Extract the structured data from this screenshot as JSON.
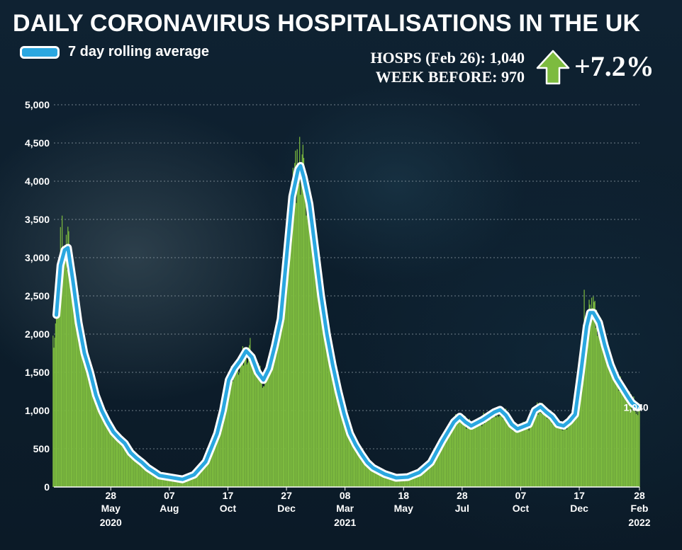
{
  "title": "DAILY CORONAVIRUS HOSPITALISATIONS IN THE UK",
  "legend": {
    "label": "7 day rolling average"
  },
  "stats": {
    "current_label": "HOSPS (Feb 26): 1,040",
    "previous_label": "WEEK BEFORE: 970",
    "change_label": "+7.2%",
    "arrow_icon": "up-arrow-icon"
  },
  "colors": {
    "bars": "#7dbb3f",
    "line": "#2aa7e0",
    "line_outline": "#ffffff",
    "arrow": "#7dbb3f",
    "end_label": "#7dbb3f"
  },
  "chart_data": {
    "type": "bar",
    "title": "DAILY CORONAVIRUS HOSPITALISATIONS IN THE UK",
    "ylim": [
      0,
      5000
    ],
    "y_ticks": [
      "0",
      "500",
      "1,000",
      "1,500",
      "2,000",
      "2,500",
      "3,000",
      "3,500",
      "4,000",
      "4,500",
      "5,000"
    ],
    "grid": "horizontal",
    "legend_position": "top-left",
    "x_ticks": [
      {
        "date": "2020-05-28",
        "day": "28",
        "month": "May",
        "year": "2020"
      },
      {
        "date": "2020-08-07",
        "day": "07",
        "month": "Aug",
        "year": ""
      },
      {
        "date": "2020-10-17",
        "day": "17",
        "month": "Oct",
        "year": ""
      },
      {
        "date": "2020-12-27",
        "day": "27",
        "month": "Dec",
        "year": ""
      },
      {
        "date": "2021-03-08",
        "day": "08",
        "month": "Mar",
        "year": "2021"
      },
      {
        "date": "2021-05-18",
        "day": "18",
        "month": "May",
        "year": ""
      },
      {
        "date": "2021-07-28",
        "day": "28",
        "month": "Jul",
        "year": ""
      },
      {
        "date": "2021-10-07",
        "day": "07",
        "month": "Oct",
        "year": ""
      },
      {
        "date": "2021-12-17",
        "day": "17",
        "month": "Dec",
        "year": ""
      },
      {
        "date": "2022-02-28",
        "day": "28",
        "month": "Feb",
        "year": "2022"
      }
    ],
    "end_label": "1,040",
    "series": [
      {
        "name": "7 day rolling average",
        "style": "line",
        "points": [
          [
            "2020-03-23",
            2250
          ],
          [
            "2020-03-28",
            2900
          ],
          [
            "2020-04-02",
            3100
          ],
          [
            "2020-04-06",
            3130
          ],
          [
            "2020-04-12",
            2700
          ],
          [
            "2020-04-19",
            2150
          ],
          [
            "2020-04-26",
            1750
          ],
          [
            "2020-05-03",
            1500
          ],
          [
            "2020-05-10",
            1200
          ],
          [
            "2020-05-17",
            1000
          ],
          [
            "2020-05-24",
            850
          ],
          [
            "2020-05-31",
            720
          ],
          [
            "2020-06-07",
            640
          ],
          [
            "2020-06-14",
            570
          ],
          [
            "2020-06-21",
            450
          ],
          [
            "2020-06-28",
            380
          ],
          [
            "2020-07-05",
            320
          ],
          [
            "2020-07-12",
            250
          ],
          [
            "2020-07-19",
            200
          ],
          [
            "2020-07-26",
            150
          ],
          [
            "2020-08-09",
            125
          ],
          [
            "2020-08-23",
            100
          ],
          [
            "2020-09-06",
            160
          ],
          [
            "2020-09-20",
            330
          ],
          [
            "2020-10-04",
            700
          ],
          [
            "2020-10-11",
            1000
          ],
          [
            "2020-10-18",
            1400
          ],
          [
            "2020-10-25",
            1550
          ],
          [
            "2020-11-01",
            1650
          ],
          [
            "2020-11-08",
            1780
          ],
          [
            "2020-11-15",
            1700
          ],
          [
            "2020-11-22",
            1500
          ],
          [
            "2020-11-29",
            1400
          ],
          [
            "2020-12-06",
            1550
          ],
          [
            "2020-12-13",
            1850
          ],
          [
            "2020-12-20",
            2200
          ],
          [
            "2020-12-27",
            3000
          ],
          [
            "2021-01-03",
            3800
          ],
          [
            "2021-01-10",
            4150
          ],
          [
            "2021-01-13",
            4200
          ],
          [
            "2021-01-17",
            4050
          ],
          [
            "2021-01-24",
            3700
          ],
          [
            "2021-01-31",
            3100
          ],
          [
            "2021-02-07",
            2500
          ],
          [
            "2021-02-14",
            2000
          ],
          [
            "2021-02-21",
            1600
          ],
          [
            "2021-02-28",
            1250
          ],
          [
            "2021-03-07",
            950
          ],
          [
            "2021-03-14",
            700
          ],
          [
            "2021-03-21",
            550
          ],
          [
            "2021-03-28",
            430
          ],
          [
            "2021-04-04",
            320
          ],
          [
            "2021-04-11",
            250
          ],
          [
            "2021-04-25",
            170
          ],
          [
            "2021-05-09",
            120
          ],
          [
            "2021-05-23",
            130
          ],
          [
            "2021-06-06",
            190
          ],
          [
            "2021-06-20",
            320
          ],
          [
            "2021-07-04",
            600
          ],
          [
            "2021-07-18",
            850
          ],
          [
            "2021-07-25",
            920
          ],
          [
            "2021-08-01",
            850
          ],
          [
            "2021-08-08",
            800
          ],
          [
            "2021-08-22",
            880
          ],
          [
            "2021-09-05",
            980
          ],
          [
            "2021-09-12",
            1010
          ],
          [
            "2021-09-19",
            940
          ],
          [
            "2021-09-26",
            820
          ],
          [
            "2021-10-03",
            760
          ],
          [
            "2021-10-17",
            820
          ],
          [
            "2021-10-24",
            1000
          ],
          [
            "2021-10-31",
            1050
          ],
          [
            "2021-11-07",
            980
          ],
          [
            "2021-11-14",
            920
          ],
          [
            "2021-11-21",
            820
          ],
          [
            "2021-11-28",
            800
          ],
          [
            "2021-12-05",
            860
          ],
          [
            "2021-12-12",
            950
          ],
          [
            "2021-12-19",
            1500
          ],
          [
            "2021-12-26",
            2100
          ],
          [
            "2021-12-30",
            2280
          ],
          [
            "2022-01-03",
            2280
          ],
          [
            "2022-01-10",
            2150
          ],
          [
            "2022-01-17",
            1850
          ],
          [
            "2022-01-24",
            1600
          ],
          [
            "2022-01-31",
            1420
          ],
          [
            "2022-02-07",
            1300
          ],
          [
            "2022-02-14",
            1180
          ],
          [
            "2022-02-19",
            1100
          ],
          [
            "2022-02-26",
            1040
          ]
        ]
      },
      {
        "name": "",
        "style": "bar",
        "note_points": "daily values",
        "points": [
          [
            "2020-03-28",
            3400
          ],
          [
            "2020-03-30",
            3550
          ],
          [
            "2020-04-04",
            3300
          ],
          [
            "2020-11-13",
            1950
          ],
          [
            "2021-01-07",
            4400
          ],
          [
            "2021-01-12",
            4580
          ],
          [
            "2021-01-15",
            4350
          ],
          [
            "2021-12-23",
            2580
          ],
          [
            "2021-12-29",
            2450
          ],
          [
            "2022-01-04",
            2420
          ],
          [
            "2022-02-28",
            1040
          ]
        ]
      }
    ]
  }
}
